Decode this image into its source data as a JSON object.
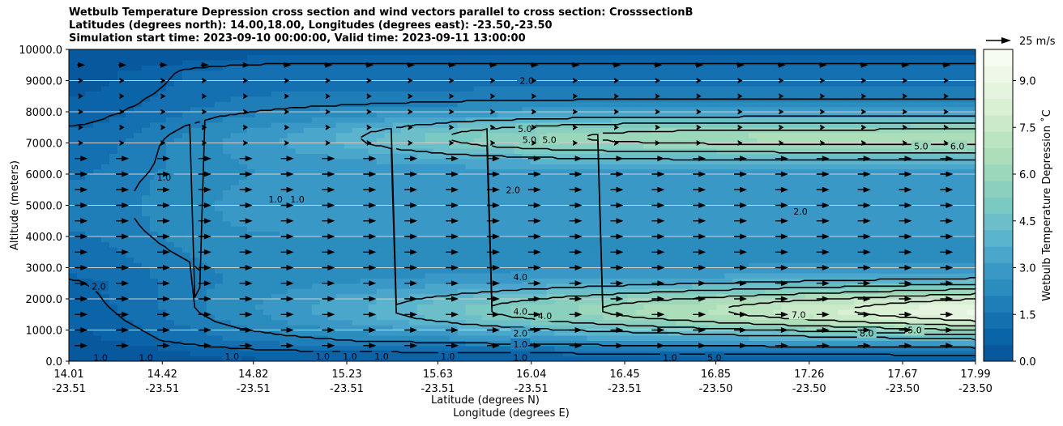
{
  "title_lines": [
    "Wetbulb Temperature Depression cross section and wind vectors parallel to cross section: CrosssectionB",
    "Latitudes (degrees north): 14.00,18.00, Longitudes (degrees east): -23.50,-23.50",
    "Simulation start time: 2023-09-10 00:00:00, Valid time: 2023-09-11 13:00:00"
  ],
  "chart_data": {
    "type": "heatmap",
    "ylabel": "Altitude (meters)",
    "xlabel_line1": "Latitude (degrees N)",
    "xlabel_line2": "Longitude (degrees E)",
    "ylim": [
      0,
      10000
    ],
    "yticks": [
      "0.0",
      "1000.0",
      "2000.0",
      "3000.0",
      "4000.0",
      "5000.0",
      "6000.0",
      "7000.0",
      "8000.0",
      "9000.0",
      "10000.0"
    ],
    "xticks": [
      {
        "lat": "14.01",
        "lon": "-23.51"
      },
      {
        "lat": "14.42",
        "lon": "-23.51"
      },
      {
        "lat": "14.82",
        "lon": "-23.51"
      },
      {
        "lat": "15.23",
        "lon": "-23.51"
      },
      {
        "lat": "15.63",
        "lon": "-23.51"
      },
      {
        "lat": "16.04",
        "lon": "-23.51"
      },
      {
        "lat": "16.45",
        "lon": "-23.51"
      },
      {
        "lat": "16.85",
        "lon": "-23.50"
      },
      {
        "lat": "17.26",
        "lon": "-23.50"
      },
      {
        "lat": "17.67",
        "lon": "-23.50"
      },
      {
        "lat": "17.99",
        "lon": "-23.50"
      }
    ],
    "colorbar": {
      "label": "Wetbulb Temperature Depression ˚C",
      "range": [
        0,
        10
      ],
      "ticks": [
        "0.0",
        "1.5",
        "3.0",
        "4.5",
        "6.0",
        "7.5",
        "9.0"
      ],
      "colors": [
        "#08589e",
        "#0b64a8",
        "#1470b0",
        "#1f7eb8",
        "#2b8cbe",
        "#3a98c6",
        "#4aa6cb",
        "#5bb4ce",
        "#6cbfc9",
        "#7bc9c3",
        "#8bd0be",
        "#9bd7ba",
        "#acdeb9",
        "#bbe4c0",
        "#cbeac9",
        "#d9f0d3",
        "#e5f4de",
        "#eef8e8",
        "#f7fcf0"
      ]
    },
    "quiver_key": "25 m/s",
    "contour_labels": [
      "2.0",
      "5.0",
      "5.0",
      "5.0",
      "1.0",
      "1.0",
      "1.0",
      "2.0",
      "2.0",
      "2.0",
      "4.0",
      "4.0",
      "4.0",
      "2.0",
      "1.0",
      "1.0",
      "1.0",
      "1.0",
      "1.0",
      "1.0",
      "1.0",
      "1.0",
      "1.0",
      "1.0",
      "5.0",
      "5.0",
      "6.0",
      "7.0",
      "8.0",
      "5.0"
    ],
    "field_description_levels": [
      1.0,
      2.0,
      4.0,
      5.0,
      6.0,
      7.0,
      8.0
    ]
  }
}
